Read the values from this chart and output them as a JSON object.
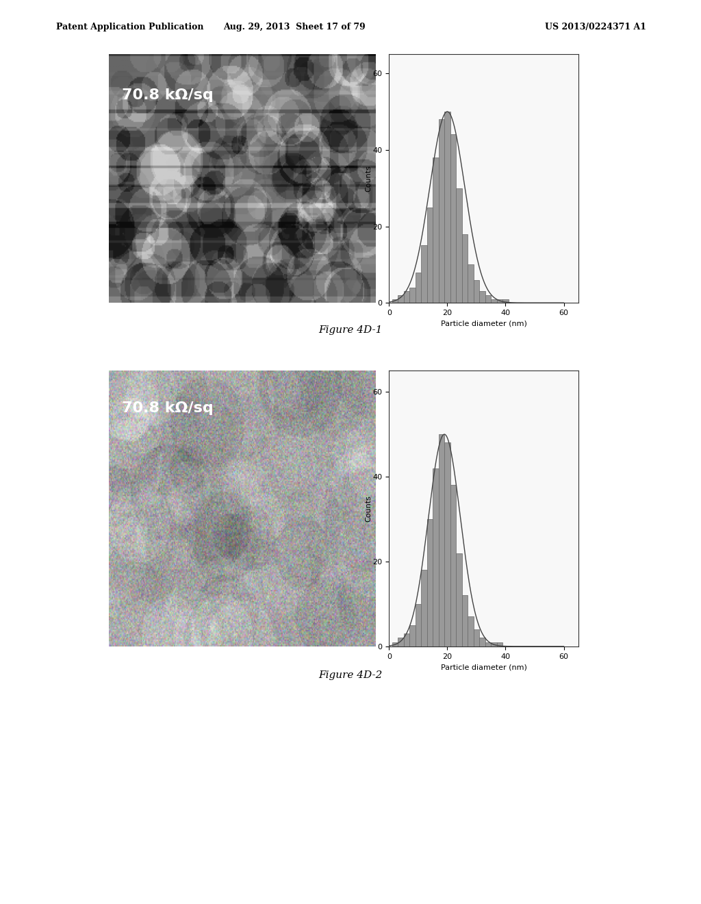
{
  "page_header_left": "Patent Application Publication",
  "page_header_mid": "Aug. 29, 2013  Sheet 17 of 79",
  "page_header_right": "US 2013/0224371 A1",
  "fig1_caption": "Figure 4D-1",
  "fig2_caption": "Figure 4D-2",
  "label_text": "70.8 kΩ/sq",
  "xlabel": "Particle diameter (nm)",
  "ylabel": "Counts",
  "xticks": [
    0,
    20,
    40,
    60
  ],
  "yticks": [
    0,
    20,
    40,
    60
  ],
  "xlim": [
    0,
    65
  ],
  "ylim": [
    0,
    65
  ],
  "hist1_bars": [
    [
      2,
      1
    ],
    [
      4,
      2
    ],
    [
      6,
      3
    ],
    [
      8,
      4
    ],
    [
      10,
      8
    ],
    [
      12,
      15
    ],
    [
      14,
      25
    ],
    [
      16,
      38
    ],
    [
      18,
      48
    ],
    [
      20,
      50
    ],
    [
      22,
      44
    ],
    [
      24,
      30
    ],
    [
      26,
      18
    ],
    [
      28,
      10
    ],
    [
      30,
      6
    ],
    [
      32,
      3
    ],
    [
      34,
      2
    ],
    [
      36,
      1
    ],
    [
      38,
      1
    ],
    [
      40,
      1
    ]
  ],
  "hist2_bars": [
    [
      2,
      1
    ],
    [
      4,
      2
    ],
    [
      6,
      3
    ],
    [
      8,
      5
    ],
    [
      10,
      10
    ],
    [
      12,
      18
    ],
    [
      14,
      30
    ],
    [
      16,
      42
    ],
    [
      18,
      50
    ],
    [
      20,
      48
    ],
    [
      22,
      38
    ],
    [
      24,
      22
    ],
    [
      26,
      12
    ],
    [
      28,
      7
    ],
    [
      30,
      4
    ],
    [
      32,
      2
    ],
    [
      34,
      1
    ],
    [
      36,
      1
    ],
    [
      38,
      1
    ],
    [
      40,
      0
    ]
  ],
  "bg_color_white": "#ffffff",
  "header_color": "#000000",
  "bar_color": "#888888",
  "curve_color": "#555555",
  "img1_base_color": "#888888",
  "img2_base_color": "#aaaaaa"
}
